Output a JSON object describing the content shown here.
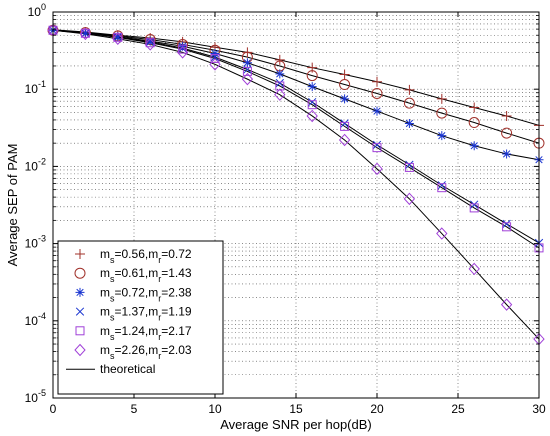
{
  "chart_data": {
    "type": "line",
    "xlabel": "Average SNR per hop(dB)",
    "ylabel": "Average SEP of PAM",
    "xlim": [
      0,
      30
    ],
    "ylim": [
      1e-05,
      1
    ],
    "yscale": "log",
    "grid": true,
    "legend_position": "bottom-left",
    "x_ticks": [
      "0",
      "5",
      "10",
      "15",
      "20",
      "25",
      "30"
    ],
    "y_ticks": [
      {
        "base": "10",
        "exp": "0"
      },
      {
        "base": "10",
        "exp": "-1"
      },
      {
        "base": "10",
        "exp": "-2"
      },
      {
        "base": "10",
        "exp": "-3"
      },
      {
        "base": "10",
        "exp": "-4"
      },
      {
        "base": "10",
        "exp": "-5"
      }
    ],
    "x": [
      0,
      2,
      4,
      6,
      8,
      10,
      12,
      14,
      16,
      18,
      20,
      22,
      24,
      26,
      28,
      30
    ],
    "series": [
      {
        "ms": "0.56",
        "mr": "0.72",
        "marker": "plus",
        "color": "#a0302a",
        "values": [
          0.59,
          0.55,
          0.5,
          0.46,
          0.41,
          0.35,
          0.3,
          0.24,
          0.19,
          0.155,
          0.125,
          0.098,
          0.075,
          0.058,
          0.045,
          0.034
        ]
      },
      {
        "ms": "0.61",
        "mr": "1.43",
        "marker": "circle",
        "color": "#a0302a",
        "values": [
          0.58,
          0.54,
          0.49,
          0.44,
          0.38,
          0.32,
          0.26,
          0.2,
          0.15,
          0.115,
          0.088,
          0.066,
          0.049,
          0.037,
          0.027,
          0.02
        ]
      },
      {
        "ms": "0.72",
        "mr": "2.38",
        "marker": "asterisk",
        "color": "#1a35d0",
        "values": [
          0.58,
          0.53,
          0.48,
          0.42,
          0.36,
          0.29,
          0.22,
          0.158,
          0.108,
          0.075,
          0.052,
          0.036,
          0.025,
          0.0185,
          0.0145,
          0.0122
        ]
      },
      {
        "ms": "1.37",
        "mr": "1.19",
        "marker": "x",
        "color": "#1a35d0",
        "values": [
          0.58,
          0.53,
          0.47,
          0.41,
          0.34,
          0.26,
          0.18,
          0.12,
          0.068,
          0.036,
          0.019,
          0.0105,
          0.0057,
          0.0032,
          0.0018,
          0.00102
        ]
      },
      {
        "ms": "1.24",
        "mr": "2.17",
        "marker": "square",
        "color": "#a040d8",
        "values": [
          0.58,
          0.53,
          0.47,
          0.4,
          0.33,
          0.25,
          0.17,
          0.11,
          0.063,
          0.033,
          0.0175,
          0.0097,
          0.0053,
          0.0029,
          0.00165,
          0.00088
        ]
      },
      {
        "ms": "2.26",
        "mr": "2.03",
        "marker": "diamond",
        "color": "#a040d8",
        "values": [
          0.58,
          0.52,
          0.45,
          0.38,
          0.3,
          0.21,
          0.135,
          0.085,
          0.045,
          0.022,
          0.0093,
          0.0038,
          0.00135,
          0.00047,
          0.000162,
          5.8e-05
        ]
      }
    ],
    "legend": {
      "entries": [
        {
          "ms_label": "m",
          "ms_sub": "s",
          "ms_value": "0.56",
          "mr_label": "m",
          "mr_sub": "r",
          "mr_value": "0.72"
        },
        {
          "ms_label": "m",
          "ms_sub": "s",
          "ms_value": "0.61",
          "mr_label": "m",
          "mr_sub": "r",
          "mr_value": "1.43"
        },
        {
          "ms_label": "m",
          "ms_sub": "s",
          "ms_value": "0.72",
          "mr_label": "m",
          "mr_sub": "r",
          "mr_value": "2.38"
        },
        {
          "ms_label": "m",
          "ms_sub": "s",
          "ms_value": "1.37",
          "mr_label": "m",
          "mr_sub": "r",
          "mr_value": "1.19"
        },
        {
          "ms_label": "m",
          "ms_sub": "s",
          "ms_value": "1.24",
          "mr_label": "m",
          "mr_sub": "r",
          "mr_value": "2.17"
        },
        {
          "ms_label": "m",
          "ms_sub": "s",
          "ms_value": "2.26",
          "mr_label": "m",
          "mr_sub": "r",
          "mr_value": "2.03"
        }
      ],
      "theory_label": "theoretical"
    }
  }
}
